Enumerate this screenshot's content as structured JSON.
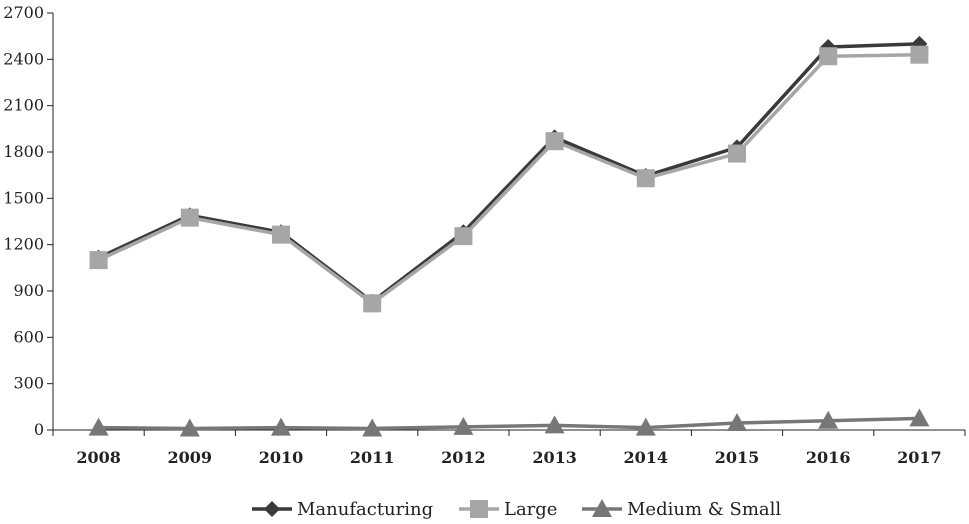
{
  "chart_data": {
    "type": "line",
    "title": "",
    "xlabel": "",
    "ylabel": "",
    "categories": [
      "2008",
      "2009",
      "2010",
      "2011",
      "2012",
      "2013",
      "2014",
      "2015",
      "2016",
      "2017"
    ],
    "ylim": [
      0,
      2700
    ],
    "yticks": [
      0,
      300,
      600,
      900,
      1200,
      1500,
      1800,
      2100,
      2400,
      2700
    ],
    "ytick_labels": [
      "0",
      "300",
      "600",
      "900",
      "1200",
      "1500",
      "1800",
      "2100",
      "2400",
      "2700"
    ],
    "grid": false,
    "legend_position": "bottom",
    "series": [
      {
        "name": "Manufacturing",
        "marker": "diamond",
        "color": "#3a3a3a",
        "values": [
          1115,
          1390,
          1280,
          830,
          1280,
          1895,
          1645,
          1830,
          2480,
          2500
        ]
      },
      {
        "name": "Large",
        "marker": "square",
        "color": "#a6a6a6",
        "values": [
          1100,
          1375,
          1265,
          820,
          1255,
          1870,
          1630,
          1790,
          2420,
          2430
        ]
      },
      {
        "name": "Medium & Small",
        "marker": "triangle",
        "color": "#777777",
        "values": [
          15,
          10,
          15,
          10,
          20,
          30,
          15,
          45,
          60,
          75
        ]
      }
    ]
  }
}
